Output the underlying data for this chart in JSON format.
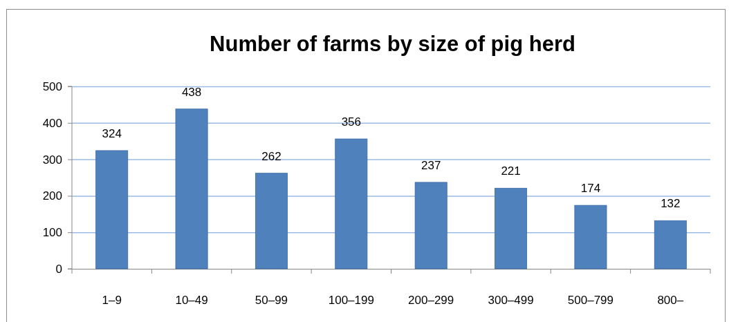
{
  "chart_data": {
    "type": "bar",
    "title": "Number of farms by size of pig herd",
    "categories": [
      "1–9",
      "10–49",
      "50–99",
      "100–199",
      "200–299",
      "300–499",
      "500–799",
      "800–"
    ],
    "values": [
      324,
      438,
      262,
      356,
      237,
      221,
      174,
      132
    ],
    "color": "#4f81bd",
    "ylim": [
      0,
      500
    ],
    "yticks": [
      0,
      100,
      200,
      300,
      400,
      500
    ],
    "grid": "y",
    "data_labels": true
  }
}
